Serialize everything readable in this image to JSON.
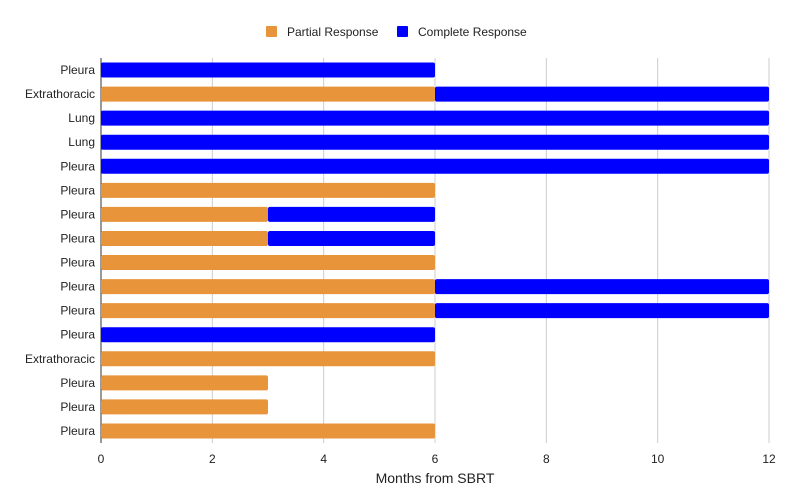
{
  "chart_data": {
    "type": "bar",
    "orientation": "horizontal",
    "stacked": true,
    "categories": [
      "Pleura",
      "Extrathoracic",
      "Lung",
      "Lung",
      "Pleura",
      "Pleura",
      "Pleura",
      "Pleura",
      "Pleura",
      "Pleura",
      "Pleura",
      "Pleura",
      "Extrathoracic",
      "Pleura",
      "Pleura",
      "Pleura"
    ],
    "series": [
      {
        "name": "Partial Response",
        "color": "#E8943A",
        "values": [
          0,
          6,
          0,
          0,
          0,
          6,
          3,
          3,
          6,
          6,
          6,
          0,
          6,
          3,
          3,
          6
        ]
      },
      {
        "name": "Complete Response",
        "color": "#0000FF",
        "values": [
          6,
          6,
          12,
          12,
          12,
          0,
          3,
          3,
          0,
          6,
          6,
          6,
          0,
          0,
          0,
          0
        ]
      }
    ],
    "xlabel": "Months from SBRT",
    "ylabel": "",
    "xlim": [
      0,
      12
    ],
    "xticks": [
      0,
      2,
      4,
      6,
      8,
      10,
      12
    ],
    "grid": "vertical",
    "legend_position": "top"
  }
}
